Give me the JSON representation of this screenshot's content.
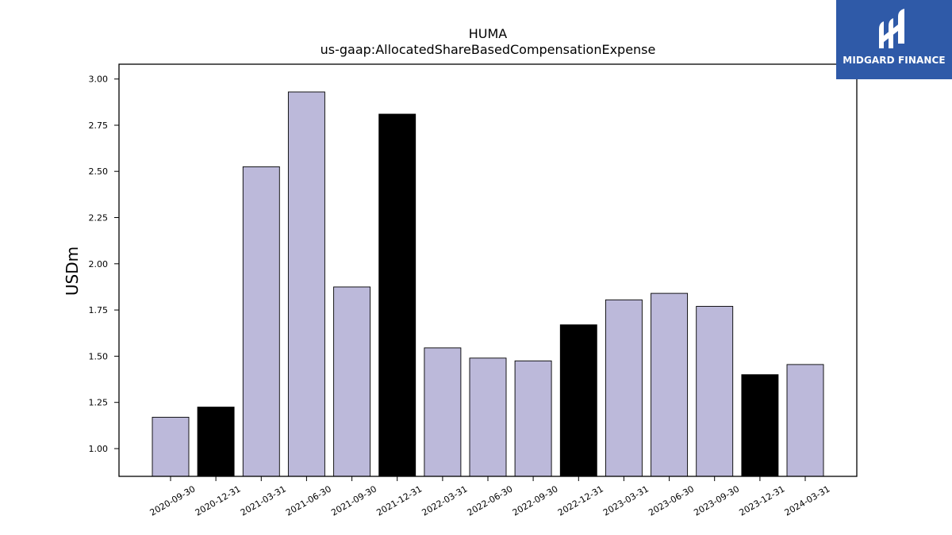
{
  "brand": {
    "name": "MIDGARD FINANCE",
    "background": "#2f5aa8",
    "foreground": "#ffffff"
  },
  "chart_data": {
    "type": "bar",
    "title": "HUMA",
    "subtitle": "us-gaap:AllocatedShareBasedCompensationExpense",
    "xlabel": "",
    "ylabel": "USDm",
    "categories": [
      "2020-09-30",
      "2020-12-31",
      "2021-03-31",
      "2021-06-30",
      "2021-09-30",
      "2021-12-31",
      "2022-03-31",
      "2022-06-30",
      "2022-09-30",
      "2022-12-31",
      "2023-03-31",
      "2023-06-30",
      "2023-09-30",
      "2023-12-31",
      "2024-03-31"
    ],
    "values": [
      1.17,
      1.225,
      2.525,
      2.93,
      1.875,
      2.81,
      1.545,
      1.49,
      1.475,
      1.67,
      1.805,
      1.84,
      1.77,
      1.4,
      1.455
    ],
    "bar_colors": [
      "#bcb9da",
      "#000000",
      "#bcb9da",
      "#bcb9da",
      "#bcb9da",
      "#000000",
      "#bcb9da",
      "#bcb9da",
      "#bcb9da",
      "#000000",
      "#bcb9da",
      "#bcb9da",
      "#bcb9da",
      "#000000",
      "#bcb9da"
    ],
    "ylim": [
      0.85,
      3.08
    ],
    "yticks": [
      1.0,
      1.25,
      1.5,
      1.75,
      2.0,
      2.25,
      2.5,
      2.75,
      3.0
    ],
    "ytick_labels": [
      "1.00",
      "1.25",
      "1.50",
      "1.75",
      "2.00",
      "2.25",
      "2.50",
      "2.75",
      "3.00"
    ],
    "grid": false,
    "legend": "none"
  }
}
